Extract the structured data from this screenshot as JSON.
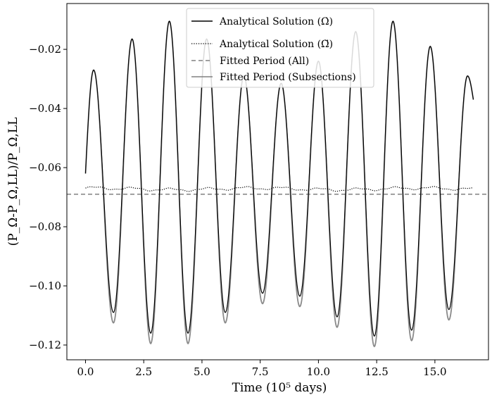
{
  "chart_data": {
    "type": "line",
    "xlabel": "Time (10⁵ days)",
    "ylabel": "(P_Ω-P_Ω,LL)/P_Ω,LL",
    "xlim": [
      -0.8,
      17.3
    ],
    "ylim": [
      -0.125,
      -0.0045
    ],
    "xticks": [
      0.0,
      2.5,
      5.0,
      7.5,
      10.0,
      12.5,
      15.0
    ],
    "xtick_labels": [
      "0.0",
      "2.5",
      "5.0",
      "7.5",
      "10.0",
      "12.5",
      "15.0"
    ],
    "yticks": [
      -0.02,
      -0.04,
      -0.06,
      -0.08,
      -0.1,
      -0.12
    ],
    "ytick_labels": [
      "−0.02",
      "−0.04",
      "−0.06",
      "−0.08",
      "−0.10",
      "−0.12"
    ],
    "grid": false,
    "legend_position": "top-center",
    "peaks": [
      {
        "x": 0.35,
        "y": -0.027
      },
      {
        "x": 2.0,
        "y": -0.0165
      },
      {
        "x": 3.6,
        "y": -0.0105
      },
      {
        "x": 5.2,
        "y": -0.0165
      },
      {
        "x": 6.8,
        "y": -0.029
      },
      {
        "x": 8.4,
        "y": -0.0315
      },
      {
        "x": 10.0,
        "y": -0.024
      },
      {
        "x": 11.6,
        "y": -0.014
      },
      {
        "x": 13.2,
        "y": -0.0105
      },
      {
        "x": 14.8,
        "y": -0.019
      },
      {
        "x": 16.4,
        "y": -0.029
      }
    ],
    "troughs": [
      {
        "x": 1.2,
        "y": -0.109
      },
      {
        "x": 2.8,
        "y": -0.116
      },
      {
        "x": 4.4,
        "y": -0.116
      },
      {
        "x": 6.0,
        "y": -0.109
      },
      {
        "x": 7.6,
        "y": -0.1025
      },
      {
        "x": 9.2,
        "y": -0.1035
      },
      {
        "x": 10.8,
        "y": -0.1105
      },
      {
        "x": 12.4,
        "y": -0.117
      },
      {
        "x": 14.0,
        "y": -0.115
      },
      {
        "x": 15.6,
        "y": -0.108
      }
    ],
    "start": {
      "x": 0.0,
      "y": -0.062
    },
    "end": {
      "x": 16.65,
      "y": -0.037
    },
    "subsection_trough_offset": -0.0035,
    "dotted_series": {
      "x_range": [
        0.0,
        16.65
      ],
      "mean": -0.0672,
      "variation": 0.0008
    },
    "fitted_all": -0.069,
    "series": [
      {
        "name": "Analytical Solution (Ω̇)",
        "style": "solid",
        "color": "#000000"
      },
      {
        "name": "Analytical Solution (Ω̈)",
        "style": "dotted",
        "color": "#000000"
      },
      {
        "name": "Fitted Period (All)",
        "style": "dashed",
        "color": "#808080"
      },
      {
        "name": "Fitted Period (Subsections)",
        "style": "solid",
        "color": "#808080"
      }
    ]
  }
}
